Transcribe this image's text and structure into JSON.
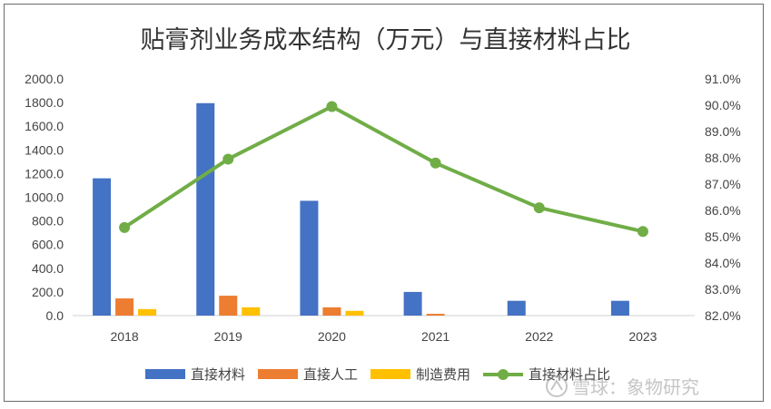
{
  "chart_data": {
    "type": "bar+line",
    "title": "贴膏剂业务成本结构（万元）与直接材料占比",
    "categories": [
      "2018",
      "2019",
      "2020",
      "2021",
      "2022",
      "2023"
    ],
    "y_left": {
      "min": 0,
      "max": 2000,
      "step": 200,
      "ticks": [
        "0.0",
        "200.0",
        "400.0",
        "600.0",
        "800.0",
        "1000.0",
        "1200.0",
        "1400.0",
        "1600.0",
        "1800.0",
        "2000.0"
      ]
    },
    "y_right": {
      "min": 82.0,
      "max": 91.0,
      "step": 1.0,
      "ticks": [
        "82.0%",
        "83.0%",
        "84.0%",
        "85.0%",
        "86.0%",
        "87.0%",
        "88.0%",
        "89.0%",
        "90.0%",
        "91.0%"
      ]
    },
    "series": [
      {
        "name": "直接材料",
        "kind": "bar",
        "axis": "left",
        "color": "#4472C4",
        "values": [
          1160,
          1795,
          970,
          200,
          125,
          125
        ]
      },
      {
        "name": "直接人工",
        "kind": "bar",
        "axis": "left",
        "color": "#ED7D31",
        "values": [
          145,
          168,
          70,
          15,
          0,
          0
        ]
      },
      {
        "name": "制造费用",
        "kind": "bar",
        "axis": "left",
        "color": "#FFC000",
        "values": [
          55,
          70,
          40,
          0,
          0,
          0
        ]
      },
      {
        "name": "直接材料占比",
        "kind": "line",
        "axis": "right",
        "color": "#70AD47",
        "values": [
          85.35,
          87.95,
          89.95,
          87.8,
          86.1,
          85.2
        ]
      }
    ],
    "grid": false,
    "legend_position": "bottom"
  },
  "watermark": {
    "text": "雪球：象物研究",
    "icon": "snowball-logo-icon"
  }
}
